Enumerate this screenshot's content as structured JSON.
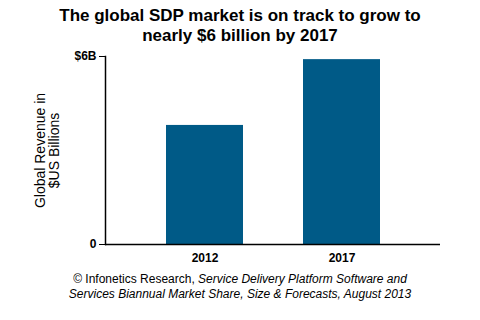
{
  "chart_data": {
    "type": "bar",
    "title": "The global SDP market is on track to grow to nearly $6 billion by 2017",
    "y_label": "Global Revenue in $US Billions",
    "caption": "© Infonetics Research, Service Delivery Platform Software and Services Biannual Market Share, Size & Forecasts, August 2013",
    "categories": [
      "2012",
      "2017"
    ],
    "values": [
      3.8,
      5.9
    ],
    "color": "#005a87",
    "ylim": [
      0,
      6
    ],
    "yticks": [
      0,
      {
        "value": 6,
        "label": "$6B"
      }
    ],
    "grid": false
  }
}
